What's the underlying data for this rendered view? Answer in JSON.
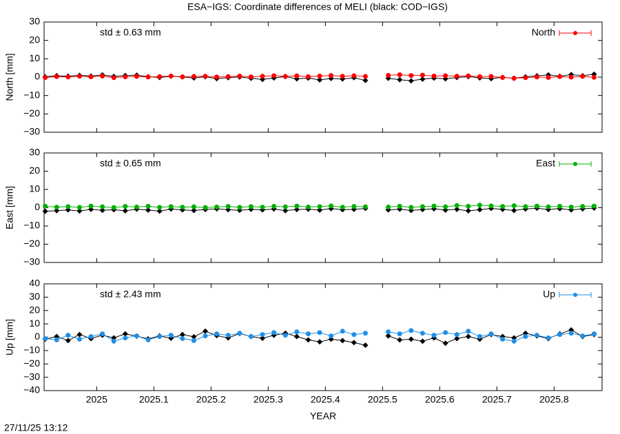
{
  "title": "ESA−IGS: Coordinate differences of MELI (black: COD−IGS)",
  "xlabel": "YEAR",
  "timestamp": "27/11/25 13:12",
  "chart_data": [
    {
      "type": "line",
      "ylabel": "North [mm]",
      "annotation": "std ± 0.63 mm",
      "annotation_color": "#ff0000",
      "legend": "upper right",
      "xlim": [
        2024.908,
        2025.884
      ],
      "xticks": [
        2025,
        2025.1,
        2025.2,
        2025.3,
        2025.4,
        2025.5,
        2025.6,
        2025.7,
        2025.8
      ],
      "ylim": [
        -30,
        30
      ],
      "yticks": [
        {
          "value": -30,
          "label": "−30"
        },
        {
          "value": -20,
          "label": "−20"
        },
        {
          "value": -10,
          "label": "−10"
        },
        0,
        10,
        20,
        30
      ],
      "x": [
        2024.91,
        2024.93,
        2024.95,
        2024.97,
        2024.99,
        2025.01,
        2025.03,
        2025.05,
        2025.07,
        2025.09,
        2025.11,
        2025.13,
        2025.15,
        2025.17,
        2025.19,
        2025.21,
        2025.23,
        2025.25,
        2025.27,
        2025.29,
        2025.31,
        2025.33,
        2025.35,
        2025.37,
        2025.39,
        2025.41,
        2025.43,
        2025.45,
        2025.47,
        2025.49,
        2025.51,
        2025.53,
        2025.55,
        2025.57,
        2025.59,
        2025.61,
        2025.63,
        2025.65,
        2025.67,
        2025.69,
        2025.71,
        2025.73,
        2025.75,
        2025.77,
        2025.79,
        2025.81,
        2025.83,
        2025.85,
        2025.87
      ],
      "series": [
        {
          "color": "#000000",
          "values": [
            0.2,
            0.8,
            0.5,
            1.0,
            0.6,
            1.2,
            0.4,
            0.9,
            1.1,
            0.3,
            -0.2,
            0.5,
            0.1,
            -0.4,
            0.2,
            -0.8,
            -0.3,
            0.1,
            -0.6,
            -1.2,
            -0.4,
            0.3,
            -0.9,
            -0.5,
            -1.5,
            -0.7,
            -1.0,
            -0.3,
            -1.8,
            null,
            -0.6,
            -1.4,
            -2.0,
            -1.1,
            -0.5,
            -0.9,
            -0.2,
            0.3,
            -0.4,
            -0.8,
            -0.1,
            -0.6,
            0.2,
            0.7,
            1.2,
            0.5,
            1.4,
            0.8,
            1.6
          ]
        },
        {
          "name": "North",
          "color": "#ff0000",
          "values": [
            -0.2,
            0.3,
            0.1,
            0.5,
            0.2,
            0.6,
            -0.3,
            0.2,
            0.4,
            0.1,
            0.3,
            0.6,
            0.2,
            0.4,
            0.5,
            0.1,
            0.3,
            0.6,
            0.2,
            0.5,
            0.8,
            0.4,
            0.7,
            0.3,
            0.6,
            0.9,
            0.5,
            0.8,
            0.4,
            null,
            1.0,
            1.3,
            0.9,
            1.1,
            0.6,
            0.8,
            0.5,
            0.7,
            0.3,
            0.4,
            -0.2,
            -0.6,
            -0.3,
            0.1,
            -0.2,
            0.3,
            0.0,
            0.4,
            -0.1
          ]
        }
      ]
    },
    {
      "type": "line",
      "ylabel": "East [mm]",
      "annotation": "std ± 0.65 mm",
      "annotation_color": "#00b000",
      "legend": "upper right",
      "xlim": [
        2024.908,
        2025.884
      ],
      "xticks": [
        2025,
        2025.1,
        2025.2,
        2025.3,
        2025.4,
        2025.5,
        2025.6,
        2025.7,
        2025.8
      ],
      "ylim": [
        -30,
        30
      ],
      "yticks": [
        {
          "value": -30,
          "label": "−30"
        },
        {
          "value": -20,
          "label": "−20"
        },
        {
          "value": -10,
          "label": "−10"
        },
        0,
        10,
        20,
        30
      ],
      "x": [
        2024.91,
        2024.93,
        2024.95,
        2024.97,
        2024.99,
        2025.01,
        2025.03,
        2025.05,
        2025.07,
        2025.09,
        2025.11,
        2025.13,
        2025.15,
        2025.17,
        2025.19,
        2025.21,
        2025.23,
        2025.25,
        2025.27,
        2025.29,
        2025.31,
        2025.33,
        2025.35,
        2025.37,
        2025.39,
        2025.41,
        2025.43,
        2025.45,
        2025.47,
        2025.49,
        2025.51,
        2025.53,
        2025.55,
        2025.57,
        2025.59,
        2025.61,
        2025.63,
        2025.65,
        2025.67,
        2025.69,
        2025.71,
        2025.73,
        2025.75,
        2025.77,
        2025.79,
        2025.81,
        2025.83,
        2025.85,
        2025.87
      ],
      "series": [
        {
          "color": "#000000",
          "values": [
            -2.0,
            -1.6,
            -1.2,
            -1.8,
            -0.9,
            -1.4,
            -1.1,
            -1.7,
            -0.8,
            -1.3,
            -1.9,
            -0.7,
            -1.2,
            -1.5,
            -1.0,
            -0.6,
            -1.1,
            -1.4,
            -0.9,
            -1.2,
            -0.7,
            -1.6,
            -1.0,
            -0.8,
            -1.3,
            -0.5,
            -1.1,
            -0.9,
            -0.4,
            null,
            -1.2,
            -0.8,
            -1.5,
            -1.0,
            -0.6,
            -1.3,
            -0.9,
            -1.7,
            -1.1,
            -0.4,
            -0.9,
            -1.5,
            -0.7,
            -0.3,
            -1.0,
            -0.5,
            -1.2,
            -0.6,
            -0.2
          ]
        },
        {
          "name": "East",
          "color": "#00b000",
          "values": [
            0.8,
            0.3,
            0.6,
            0.2,
            0.9,
            0.5,
            0.1,
            0.7,
            0.4,
            0.8,
            0.2,
            0.6,
            0.3,
            0.5,
            0.1,
            0.4,
            0.7,
            0.2,
            0.6,
            0.3,
            0.8,
            0.5,
            0.9,
            0.4,
            0.6,
            1.0,
            0.3,
            0.7,
            0.5,
            null,
            0.4,
            0.8,
            0.2,
            0.6,
            0.9,
            0.5,
            1.2,
            0.8,
            1.4,
            1.0,
            0.7,
            1.1,
            0.6,
            0.9,
            0.5,
            0.8,
            0.4,
            0.7,
            0.9
          ]
        }
      ]
    },
    {
      "type": "line",
      "ylabel": "Up [mm]",
      "annotation": "std ± 2.43 mm",
      "annotation_color": "#1e8fe8",
      "legend": "upper right",
      "xlim": [
        2024.908,
        2025.884
      ],
      "xticks": [
        2025,
        2025.1,
        2025.2,
        2025.3,
        2025.4,
        2025.5,
        2025.6,
        2025.7,
        2025.8
      ],
      "ylim": [
        -40,
        40
      ],
      "yticks": [
        {
          "value": -40,
          "label": "−40"
        },
        {
          "value": -30,
          "label": "−30"
        },
        {
          "value": -20,
          "label": "−20"
        },
        {
          "value": -10,
          "label": "−10"
        },
        0,
        10,
        20,
        30,
        40
      ],
      "x": [
        2024.91,
        2024.93,
        2024.95,
        2024.97,
        2024.99,
        2025.01,
        2025.03,
        2025.05,
        2025.07,
        2025.09,
        2025.11,
        2025.13,
        2025.15,
        2025.17,
        2025.19,
        2025.21,
        2025.23,
        2025.25,
        2025.27,
        2025.29,
        2025.31,
        2025.33,
        2025.35,
        2025.37,
        2025.39,
        2025.41,
        2025.43,
        2025.45,
        2025.47,
        2025.49,
        2025.51,
        2025.53,
        2025.55,
        2025.57,
        2025.59,
        2025.61,
        2025.63,
        2025.65,
        2025.67,
        2025.69,
        2025.71,
        2025.73,
        2025.75,
        2025.77,
        2025.79,
        2025.81,
        2025.83,
        2025.85,
        2025.87
      ],
      "series": [
        {
          "color": "#000000",
          "values": [
            -1.5,
            0.5,
            -2.5,
            2.0,
            -1.0,
            1.5,
            -0.5,
            2.5,
            0.8,
            -1.2,
            1.0,
            -0.8,
            2.0,
            0.3,
            4.5,
            1.2,
            -0.5,
            2.8,
            0.5,
            -0.8,
            1.5,
            3.0,
            0.5,
            -2.0,
            -3.5,
            -1.5,
            -2.5,
            -4.0,
            -6.0,
            null,
            1.0,
            -2.0,
            -1.5,
            -3.0,
            -0.5,
            -4.5,
            -1.0,
            0.5,
            -1.5,
            2.0,
            0.5,
            -0.5,
            3.0,
            1.0,
            -1.0,
            2.5,
            5.5,
            0.5,
            2.0
          ]
        },
        {
          "name": "Up",
          "color": "#1e8fe8",
          "values": [
            -1.0,
            -2.0,
            1.5,
            -1.5,
            0.5,
            2.5,
            -3.0,
            -0.5,
            1.0,
            -2.0,
            0.5,
            1.5,
            -1.0,
            -2.5,
            1.0,
            2.5,
            1.5,
            3.0,
            0.5,
            2.0,
            3.5,
            1.5,
            4.0,
            2.5,
            3.5,
            1.0,
            4.5,
            2.0,
            3.0,
            null,
            4.0,
            2.5,
            5.0,
            3.0,
            1.5,
            3.5,
            2.0,
            4.5,
            0.5,
            2.5,
            -1.5,
            -3.0,
            0.5,
            1.5,
            -0.5,
            2.0,
            3.0,
            1.0,
            2.5
          ]
        }
      ]
    }
  ]
}
